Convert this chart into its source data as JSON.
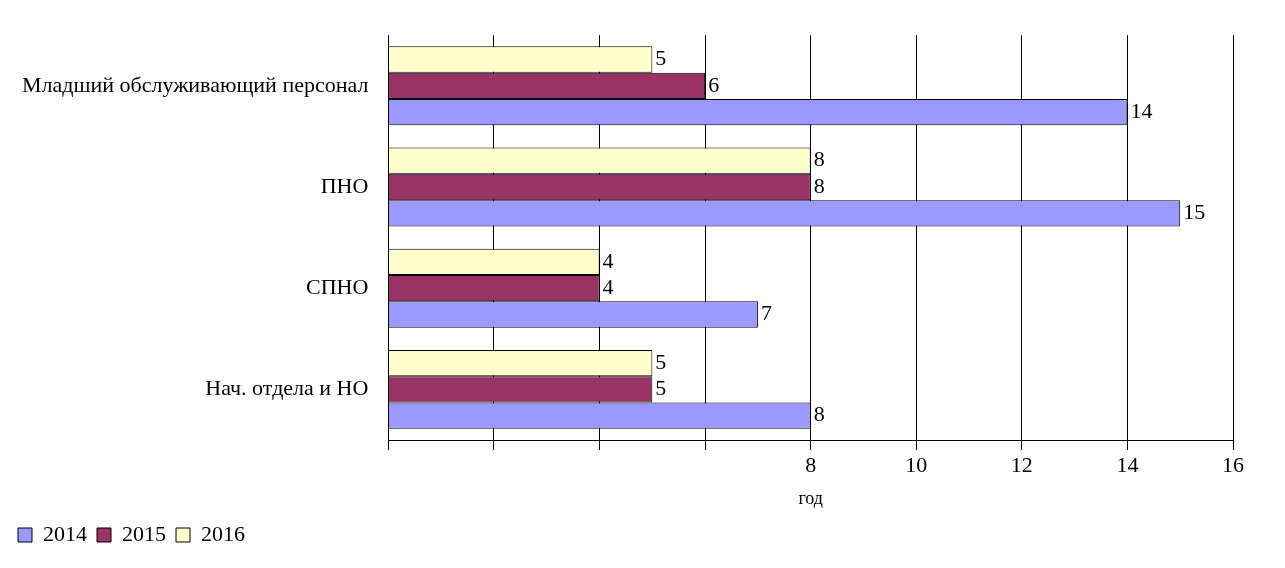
{
  "chart_data": {
    "type": "bar",
    "orientation": "horizontal",
    "categories": [
      "Младший обслуживающий персонал",
      "ПНО",
      "СПНО",
      "Нач. отдела и НО"
    ],
    "series": [
      {
        "name": "2014",
        "color": "#9999ff",
        "values": [
          14,
          15,
          7,
          8
        ]
      },
      {
        "name": "2015",
        "color": "#993366",
        "values": [
          6,
          8,
          4,
          5
        ]
      },
      {
        "name": "2016",
        "color": "#ffffcc",
        "values": [
          5,
          8,
          4,
          5
        ]
      }
    ],
    "xlabel": "год",
    "xlim": [
      0,
      16
    ],
    "xticks": [
      {
        "value": 0,
        "label": null
      },
      {
        "value": 2,
        "label": null
      },
      {
        "value": 4,
        "label": null
      },
      {
        "value": 6,
        "label": null
      },
      8,
      10,
      12,
      14,
      16
    ],
    "grid": "x",
    "legend": "bottom left",
    "data_labels": true
  }
}
